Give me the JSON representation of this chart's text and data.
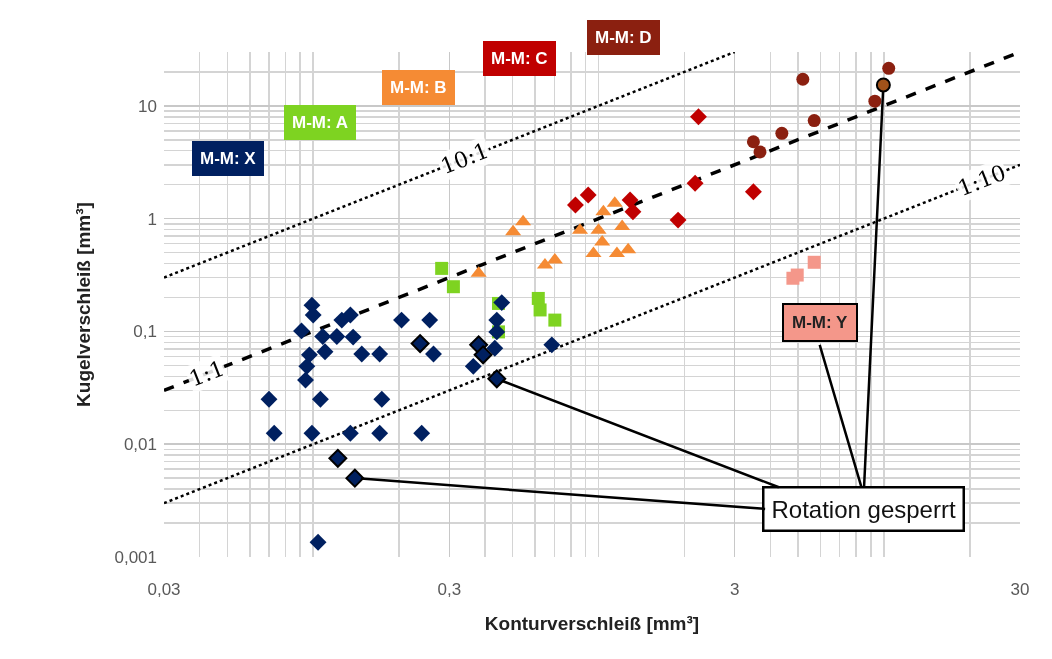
{
  "chart_data": {
    "type": "scatter",
    "xlabel": "Konturverschleiß [mm³]",
    "ylabel": "Kugelverschleiß [mm³]",
    "log": "xy",
    "xlim": [
      0.03,
      30
    ],
    "ylim": [
      0.001,
      30
    ],
    "xticks": [
      {
        "value": 0.03,
        "label": "0,03"
      },
      {
        "value": 0.3,
        "label": "0,3"
      },
      3,
      30
    ],
    "yticks": [
      {
        "value": 0.001,
        "label": "0,001"
      },
      {
        "value": 0.01,
        "label": "0,01"
      },
      {
        "value": 0.1,
        "label": "0,1"
      },
      1,
      10
    ],
    "grid": true,
    "legend": false,
    "annotations": [
      {
        "text": "Rotation gesperrt",
        "x": 9.96,
        "y": 15.3
      }
    ],
    "series": [
      {
        "name": "10:1",
        "type": "line",
        "line_style": "dotted",
        "color": "#000000",
        "x": [
          0.03,
          3
        ],
        "values": [
          0.3,
          30
        ]
      },
      {
        "name": "1:1",
        "type": "line",
        "line_style": "dashed",
        "color": "#000000",
        "x": [
          0.03,
          30
        ],
        "values": [
          0.03,
          30
        ]
      },
      {
        "name": "1:10",
        "type": "line",
        "line_style": "dotted",
        "color": "#000000",
        "x": [
          0.03,
          30
        ],
        "values": [
          0.003,
          3
        ]
      },
      {
        "name": "M-M: A",
        "marker": "square",
        "color": "#7ed321",
        "x": [
          0.282,
          0.31,
          0.446,
          0.446,
          0.615,
          0.624,
          0.703
        ],
        "values": [
          0.362,
          0.249,
          0.177,
          0.099,
          0.196,
          0.155,
          0.126
        ]
      },
      {
        "name": "M-M: X",
        "marker": "diamond",
        "color": "#002060",
        "x": [
          0.099,
          0.1,
          0.091,
          0.108,
          0.126,
          0.135,
          0.121,
          0.138,
          0.11,
          0.097,
          0.095,
          0.094,
          0.148,
          0.171,
          0.204,
          0.256,
          0.264,
          0.07,
          0.106,
          0.174,
          0.073,
          0.099,
          0.135,
          0.171,
          0.24,
          0.104,
          0.364,
          0.433,
          0.458,
          0.44,
          0.44,
          0.686
        ],
        "values": [
          0.171,
          0.14,
          0.101,
          0.09,
          0.126,
          0.14,
          0.09,
          0.089,
          0.066,
          0.062,
          0.049,
          0.037,
          0.063,
          0.063,
          0.126,
          0.126,
          0.063,
          0.025,
          0.025,
          0.025,
          0.0125,
          0.0125,
          0.0125,
          0.0125,
          0.0125,
          0.00135,
          0.049,
          0.071,
          0.18,
          0.126,
          0.099,
          0.076
        ]
      },
      {
        "name": "M-M: B",
        "marker": "triangle",
        "color": "#f58b34",
        "x": [
          0.38,
          0.502,
          0.544,
          0.649,
          0.703,
          0.861,
          0.96,
          1.0,
          1.04,
          1.14,
          1.21,
          1.03,
          1.16,
          1.27
        ],
        "values": [
          0.327,
          0.766,
          0.94,
          0.388,
          0.43,
          0.79,
          0.49,
          0.79,
          1.15,
          1.37,
          0.85,
          0.62,
          0.49,
          0.53
        ]
      },
      {
        "name": "M-M: C",
        "marker": "diamond",
        "color": "#c00000",
        "x": [
          0.83,
          0.92,
          1.29,
          1.32,
          1.9,
          2.18,
          2.24,
          3.49
        ],
        "values": [
          1.32,
          1.62,
          1.46,
          1.15,
          0.97,
          2.06,
          8.0,
          1.73
        ]
      },
      {
        "name": "M-M: D",
        "marker": "circle",
        "color": "#8b2010",
        "x": [
          3.49,
          3.68,
          4.39,
          5.2,
          5.7,
          9.3,
          10.4
        ],
        "values": [
          4.8,
          3.9,
          5.7,
          17.2,
          7.4,
          11.0,
          21.5
        ]
      },
      {
        "name": "M-M: Y",
        "marker": "square",
        "color": "#f4978a",
        "x": [
          4.8,
          4.97,
          5.7
        ],
        "values": [
          0.296,
          0.316,
          0.41
        ]
      },
      {
        "marker": "diamond",
        "color": "#002060",
        "x": [
          0.237,
          0.38,
          0.394,
          0.44
        ],
        "values": [
          0.078,
          0.076,
          0.062,
          0.038
        ]
      },
      {
        "marker": "diamond",
        "color": "#002060",
        "x": [
          0.122,
          0.14
        ],
        "values": [
          0.0075,
          0.005
        ]
      },
      {
        "marker": "circle",
        "color": "#a0521a",
        "x": [
          9.96
        ],
        "values": [
          15.3
        ]
      }
    ]
  }
}
